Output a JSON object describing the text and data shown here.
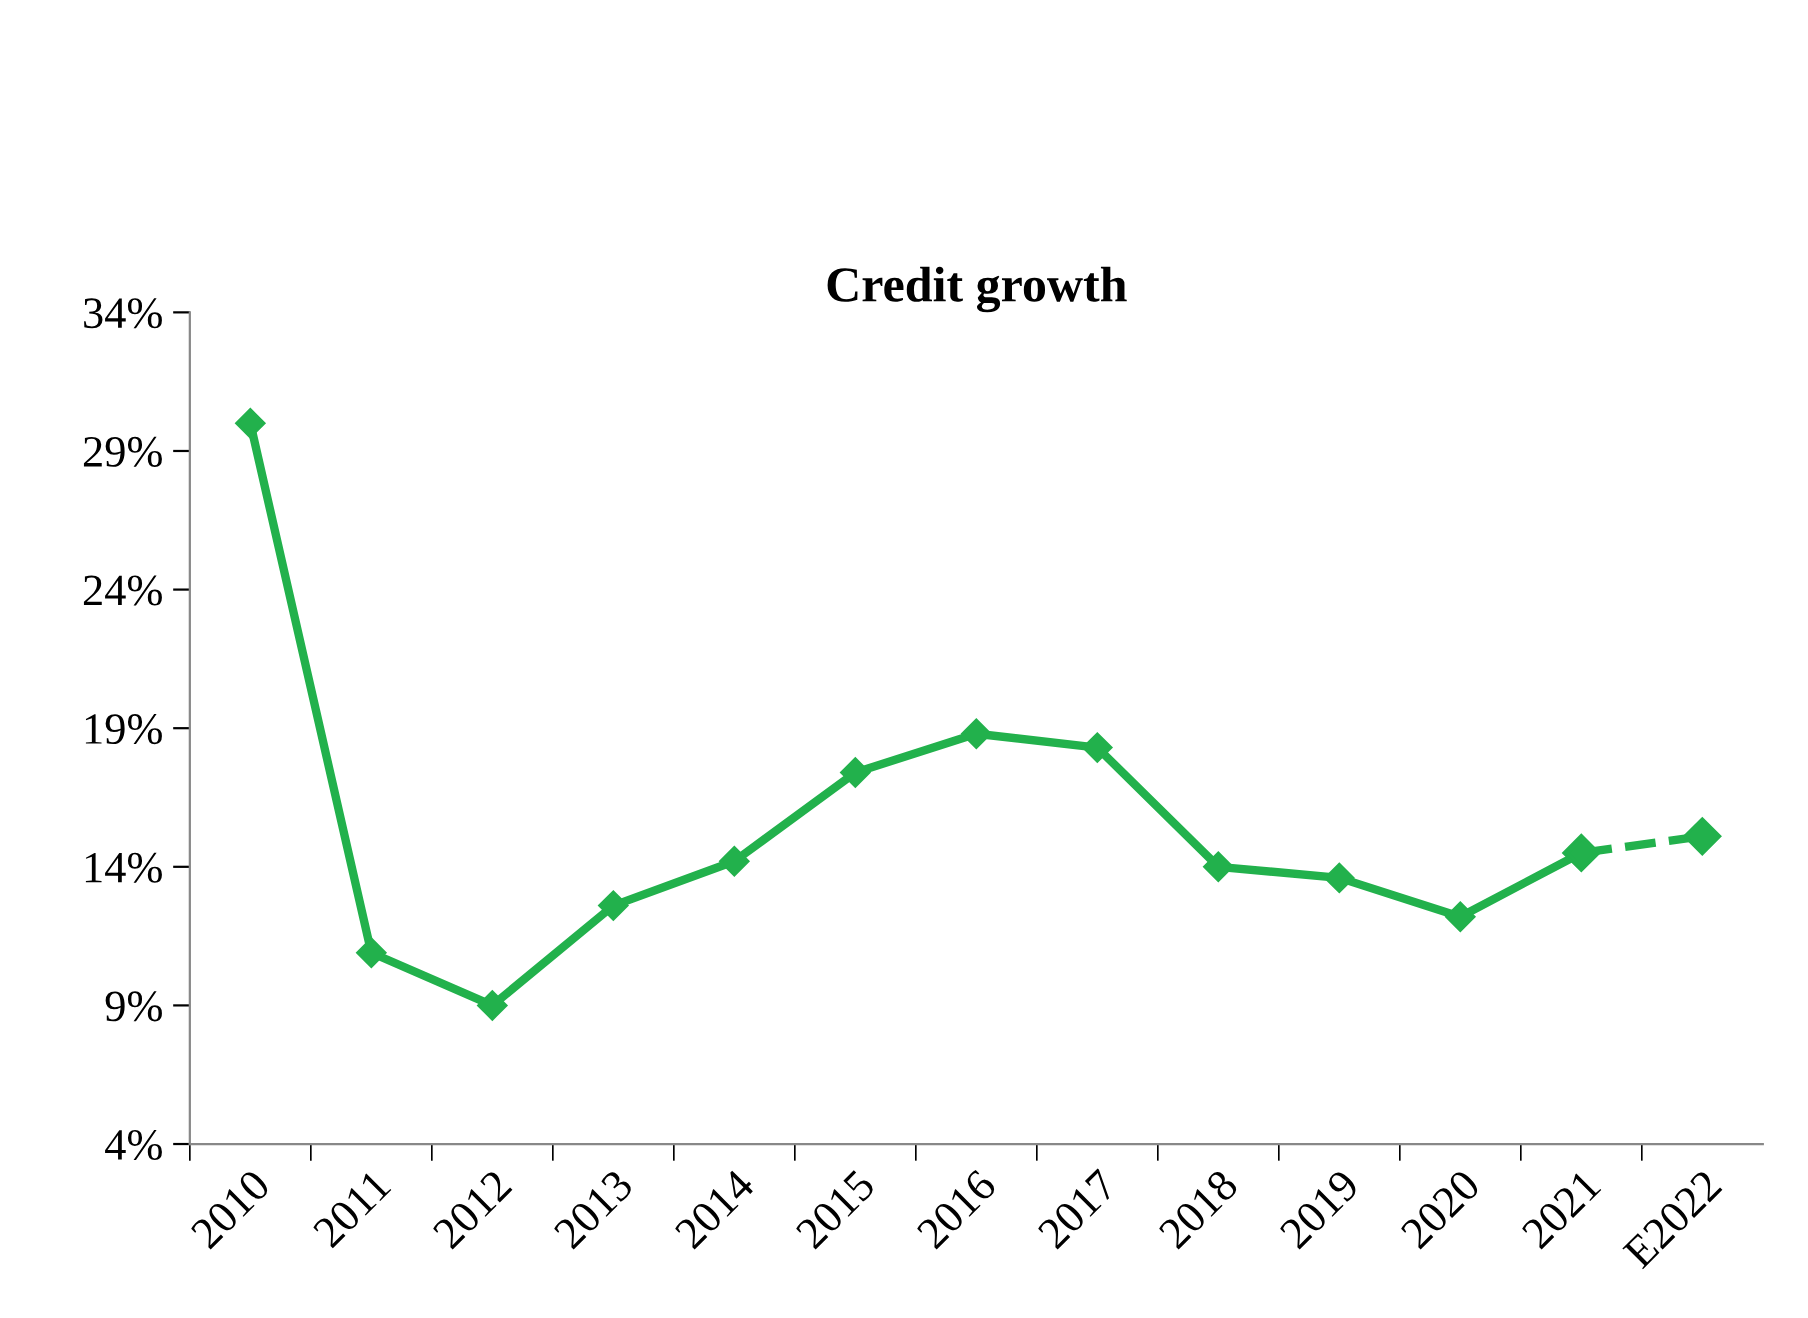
{
  "chart_data": {
    "type": "line",
    "title": "Credit growth",
    "categories": [
      "2010",
      "2011",
      "2012",
      "2013",
      "2014",
      "2015",
      "2016",
      "2017",
      "2018",
      "2019",
      "2020",
      "2021",
      "E2022"
    ],
    "series": [
      {
        "color": "#22b14c",
        "line_style": "solid",
        "values": [
          30.0,
          10.9,
          9.0,
          12.6,
          14.2,
          17.4,
          18.8,
          18.3,
          14.0,
          13.6,
          12.2,
          14.5,
          null
        ]
      },
      {
        "color": "#22b14c",
        "line_style": "dashed",
        "values": [
          null,
          null,
          null,
          null,
          null,
          null,
          null,
          null,
          null,
          null,
          null,
          14.5,
          15.1
        ]
      }
    ],
    "marker": "diamond",
    "ylim": [
      4,
      34
    ],
    "yticks": [
      {
        "value": 4,
        "label": "4%"
      },
      {
        "value": 9,
        "label": "9%"
      },
      {
        "value": 14,
        "label": "14%"
      },
      {
        "value": 19,
        "label": "19%"
      },
      {
        "value": 24,
        "label": "24%"
      },
      {
        "value": 29,
        "label": "29%"
      },
      {
        "value": 34,
        "label": "34%"
      }
    ],
    "grid": false,
    "legend": false
  }
}
